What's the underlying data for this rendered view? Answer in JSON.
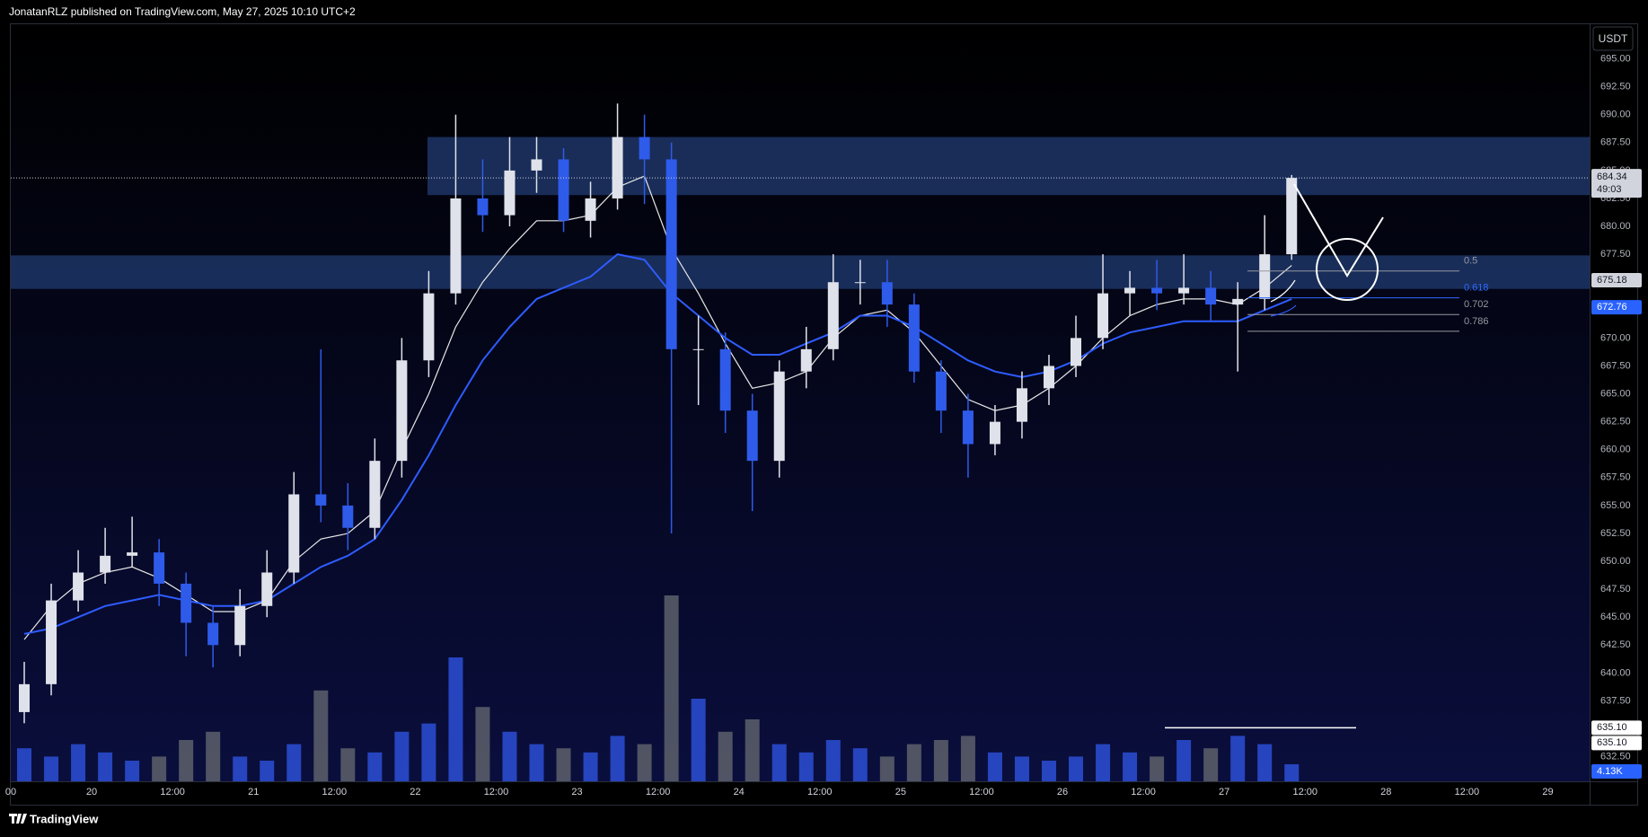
{
  "chart_data": {
    "type": "candlestick",
    "header": "JonatanRLZ published on TradingView.com, May 27, 2025 10:10 UTC+2",
    "currency": "USDT",
    "brand": "TradingView",
    "up_color": "#dfe2ea",
    "down_color": "#2f5bea",
    "open": [
      636.5,
      639,
      646.5,
      649,
      650.5,
      650.8,
      648,
      644.5,
      642.5,
      646,
      649,
      656,
      655,
      653,
      659,
      668,
      674,
      682.5,
      681,
      685,
      686,
      680.5,
      682.5,
      688,
      686,
      669,
      669,
      663.5,
      659,
      667,
      669,
      675,
      675,
      673,
      667,
      663.5,
      660.5,
      662.5,
      665.5,
      667.5,
      670,
      674,
      674.5,
      674,
      674.5,
      673,
      673.5,
      677.5
    ],
    "high": [
      641,
      648,
      651,
      653,
      654,
      652,
      649,
      646,
      647.5,
      651,
      658,
      669,
      657,
      661,
      670,
      676,
      690,
      686,
      688,
      688,
      687,
      684,
      691,
      690,
      687.5,
      672,
      670.5,
      665,
      668,
      671,
      677.5,
      677,
      677,
      674,
      668,
      665,
      664,
      667,
      668.5,
      672,
      677.5,
      676,
      677,
      677.5,
      676,
      675,
      681,
      684.6
    ],
    "low": [
      635.5,
      638,
      645.5,
      648,
      649.5,
      646,
      641.5,
      640.5,
      641.5,
      645,
      648,
      653.5,
      651,
      652,
      657.5,
      666.5,
      673,
      679.5,
      680,
      683,
      679.5,
      679,
      681.5,
      682,
      652.5,
      664,
      661.5,
      654.5,
      657.5,
      665.5,
      668,
      673,
      671,
      666,
      661.5,
      657.5,
      659.5,
      661,
      664,
      666.5,
      669,
      672,
      672.5,
      673,
      671.5,
      667,
      672.5,
      677
    ],
    "close": [
      639,
      646.5,
      649,
      650.5,
      650.8,
      648,
      644.5,
      642.5,
      646,
      649,
      656,
      655,
      653,
      659,
      668,
      674,
      682.5,
      681,
      685,
      686,
      680.5,
      682.5,
      688,
      686,
      669,
      669,
      663.5,
      659,
      667,
      669,
      675,
      675,
      673,
      667,
      663.5,
      660.5,
      662.5,
      665.5,
      667.5,
      670,
      674,
      674.5,
      674,
      674.5,
      673,
      673.5,
      677.5,
      684.34
    ],
    "overlays": [
      {
        "color": "#e8e8e8",
        "values": [
          643,
          646,
          648,
          649,
          649.5,
          648.5,
          647,
          645.5,
          645.5,
          646.5,
          650,
          652,
          652.5,
          654.5,
          660,
          665,
          671,
          675,
          678,
          680.5,
          680.5,
          681,
          683.5,
          684.5,
          678,
          674,
          669.5,
          665.5,
          666,
          667,
          670,
          672,
          672.5,
          670.5,
          667.5,
          664.5,
          663.5,
          664,
          665.5,
          667.5,
          670,
          672,
          673,
          673.5,
          673.5,
          673,
          674.5,
          676.5
        ]
      },
      {
        "color": "#2e5cff",
        "values": [
          643.5,
          644,
          645,
          646,
          646.5,
          647,
          646.5,
          646,
          646,
          646.5,
          648,
          649.5,
          650.5,
          652,
          655.5,
          659.5,
          664,
          668,
          671,
          673.5,
          674.5,
          675.5,
          677.5,
          677,
          674,
          672,
          670,
          668.5,
          668.5,
          669.5,
          670.5,
          672,
          672,
          671,
          669.5,
          668,
          667,
          666.5,
          667,
          668,
          669.5,
          670.5,
          671,
          671.5,
          671.5,
          671.5,
          672.5,
          673.5
        ]
      }
    ],
    "volume": {
      "up_color": "#2c4fd6",
      "down_color": "#5d606b",
      "ylim": [
        0,
        50
      ],
      "values": [
        8,
        6,
        9,
        7,
        5,
        6,
        10,
        12,
        6,
        5,
        9,
        22,
        8,
        7,
        12,
        14,
        30,
        18,
        12,
        9,
        8,
        7,
        11,
        9,
        45,
        20,
        12,
        15,
        9,
        7,
        10,
        8,
        6,
        9,
        10,
        11,
        7,
        6,
        5,
        6,
        9,
        7,
        6,
        10,
        8,
        11,
        9,
        4.13
      ],
      "last_label": "4.13K"
    },
    "zone_color": "#1d3566",
    "zones": [
      {
        "from": 682.8,
        "to": 688
      },
      {
        "from": 674.4,
        "to": 677.4
      }
    ],
    "fib": [
      {
        "ratio": 0.5,
        "price": 676.0,
        "color": "#9598a1"
      },
      {
        "ratio": 0.618,
        "price": 673.6,
        "color": "#2e6bff"
      },
      {
        "ratio": 0.702,
        "price": 672.1,
        "color": "#9598a1"
      },
      {
        "ratio": 0.786,
        "price": 670.6,
        "color": "#9598a1"
      }
    ],
    "current": {
      "value": 684.34,
      "countdown": "49:03"
    },
    "price_tags": [
      {
        "value": 675.18,
        "bg": "#d1d4dc",
        "fg": "#131722"
      },
      {
        "value": 672.76,
        "bg": "#2962ff",
        "fg": "#ffffff"
      },
      {
        "value": 635.1,
        "label": "635.10",
        "bg": "#ffffff",
        "fg": "#131722"
      },
      {
        "value": 635.1,
        "label": "635.10",
        "bg": "#ffffff",
        "fg": "#131722"
      }
    ],
    "ylim": [
      630.3,
      698.1
    ],
    "yticks": [
      {
        "value": 632.5,
        "label": "632.50"
      },
      {
        "value": 635,
        "label": "635.00"
      },
      {
        "value": 637.5,
        "label": "637.50"
      },
      {
        "value": 640,
        "label": "640.00"
      },
      {
        "value": 642.5,
        "label": "642.50"
      },
      {
        "value": 645,
        "label": "645.00"
      },
      {
        "value": 647.5,
        "label": "647.50"
      },
      {
        "value": 650,
        "label": "650.00"
      },
      {
        "value": 652.5,
        "label": "652.50"
      },
      {
        "value": 655,
        "label": "655.00"
      },
      {
        "value": 657.5,
        "label": "657.50"
      },
      {
        "value": 660,
        "label": "660.00"
      },
      {
        "value": 662.5,
        "label": "662.50"
      },
      {
        "value": 665,
        "label": "665.00"
      },
      {
        "value": 667.5,
        "label": "667.50"
      },
      {
        "value": 670,
        "label": "670.00"
      },
      {
        "value": 672.5,
        "label": "672.50"
      },
      {
        "value": 675,
        "label": "675.00"
      },
      {
        "value": 677.5,
        "label": "677.50"
      },
      {
        "value": 680,
        "label": "680.00"
      },
      {
        "value": 682.5,
        "label": "682.50"
      },
      {
        "value": 685,
        "label": "685.00"
      },
      {
        "value": 687.5,
        "label": "687.50"
      },
      {
        "value": 690,
        "label": "690.00"
      },
      {
        "value": 692.5,
        "label": "692.50"
      },
      {
        "value": 695,
        "label": "695.00"
      }
    ],
    "xlim": [
      0,
      58.55
    ],
    "xticks": [
      {
        "value": 0,
        "label": "00"
      },
      {
        "value": 3,
        "label": "20"
      },
      {
        "value": 6,
        "label": "12:00"
      },
      {
        "value": 9,
        "label": "21"
      },
      {
        "value": 12,
        "label": "12:00"
      },
      {
        "value": 15,
        "label": "22"
      },
      {
        "value": 18,
        "label": "12:00"
      },
      {
        "value": 21,
        "label": "23"
      },
      {
        "value": 24,
        "label": "12:00"
      },
      {
        "value": 27,
        "label": "24"
      },
      {
        "value": 30,
        "label": "12:00"
      },
      {
        "value": 33,
        "label": "25"
      },
      {
        "value": 36,
        "label": "12:00"
      },
      {
        "value": 39,
        "label": "26"
      },
      {
        "value": 42,
        "label": "12:00"
      },
      {
        "value": 45,
        "label": "27"
      },
      {
        "value": 48,
        "label": "12:00"
      },
      {
        "value": 51,
        "label": "28"
      },
      {
        "value": 54,
        "label": "12:00"
      },
      {
        "value": 57,
        "label": "29"
      }
    ],
    "grid": false
  }
}
